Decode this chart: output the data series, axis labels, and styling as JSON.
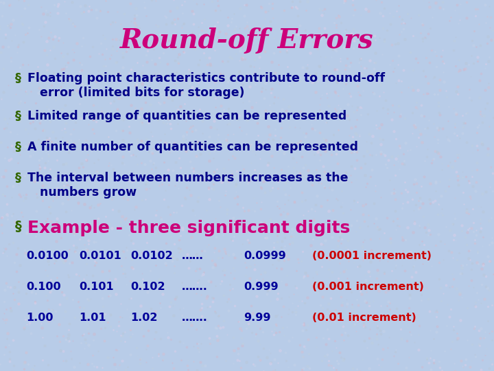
{
  "title": "Round-off Errors",
  "title_color": "#CC007A",
  "title_fontsize": 28,
  "background_color": "#B8CCE8",
  "bullet_color": "#336600",
  "bullet_text_color": "#000088",
  "bullets": [
    "Floating point characteristics contribute to round-off\n   error (limited bits for storage)",
    "Limited range of quantities can be represented",
    "A finite number of quantities can be represented",
    "The interval between numbers increases as the\n   numbers grow"
  ],
  "example_label": "Example - three significant digits",
  "example_label_color": "#CC007A",
  "example_bullet_color": "#336600",
  "table_rows": [
    {
      "cols": [
        "0.0100",
        "0.0101",
        "0.0102",
        "……",
        "0.0999"
      ],
      "note": "(0.0001 increment)"
    },
    {
      "cols": [
        "0.100",
        "0.101",
        "0.102",
        "…….",
        "0.999"
      ],
      "note": "(0.001 increment)"
    },
    {
      "cols": [
        "1.00",
        "1.01",
        "1.02",
        "…….",
        "9.99"
      ],
      "note": "(0.01 increment)"
    }
  ],
  "table_col_color": "#000099",
  "table_note_color": "#CC0000",
  "speckle_colors": [
    "#D4B8CC",
    "#C8D4E8",
    "#E0D0E8",
    "#B8C8D8",
    "#D8C0D0",
    "#C0D0E0"
  ],
  "bullet_fontsize": 12.5,
  "example_fontsize": 18,
  "table_fontsize": 11.5
}
